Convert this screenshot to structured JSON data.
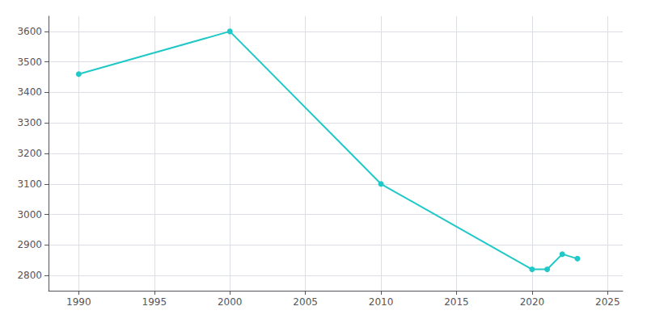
{
  "chart_data": {
    "type": "line",
    "x": [
      1990,
      2000,
      2010,
      2020,
      2021,
      2022,
      2023
    ],
    "values": [
      3460,
      3600,
      3100,
      2820,
      2820,
      2870,
      2855
    ],
    "color": "#20C8C8",
    "marker": "circle",
    "xlim": [
      1988,
      2026
    ],
    "ylim": [
      2750,
      3650
    ],
    "xticks": [
      1990,
      1995,
      2000,
      2005,
      2010,
      2015,
      2020,
      2025
    ],
    "yticks": [
      2800,
      2900,
      3000,
      3100,
      3200,
      3300,
      3400,
      3500,
      3600
    ],
    "grid": true
  }
}
